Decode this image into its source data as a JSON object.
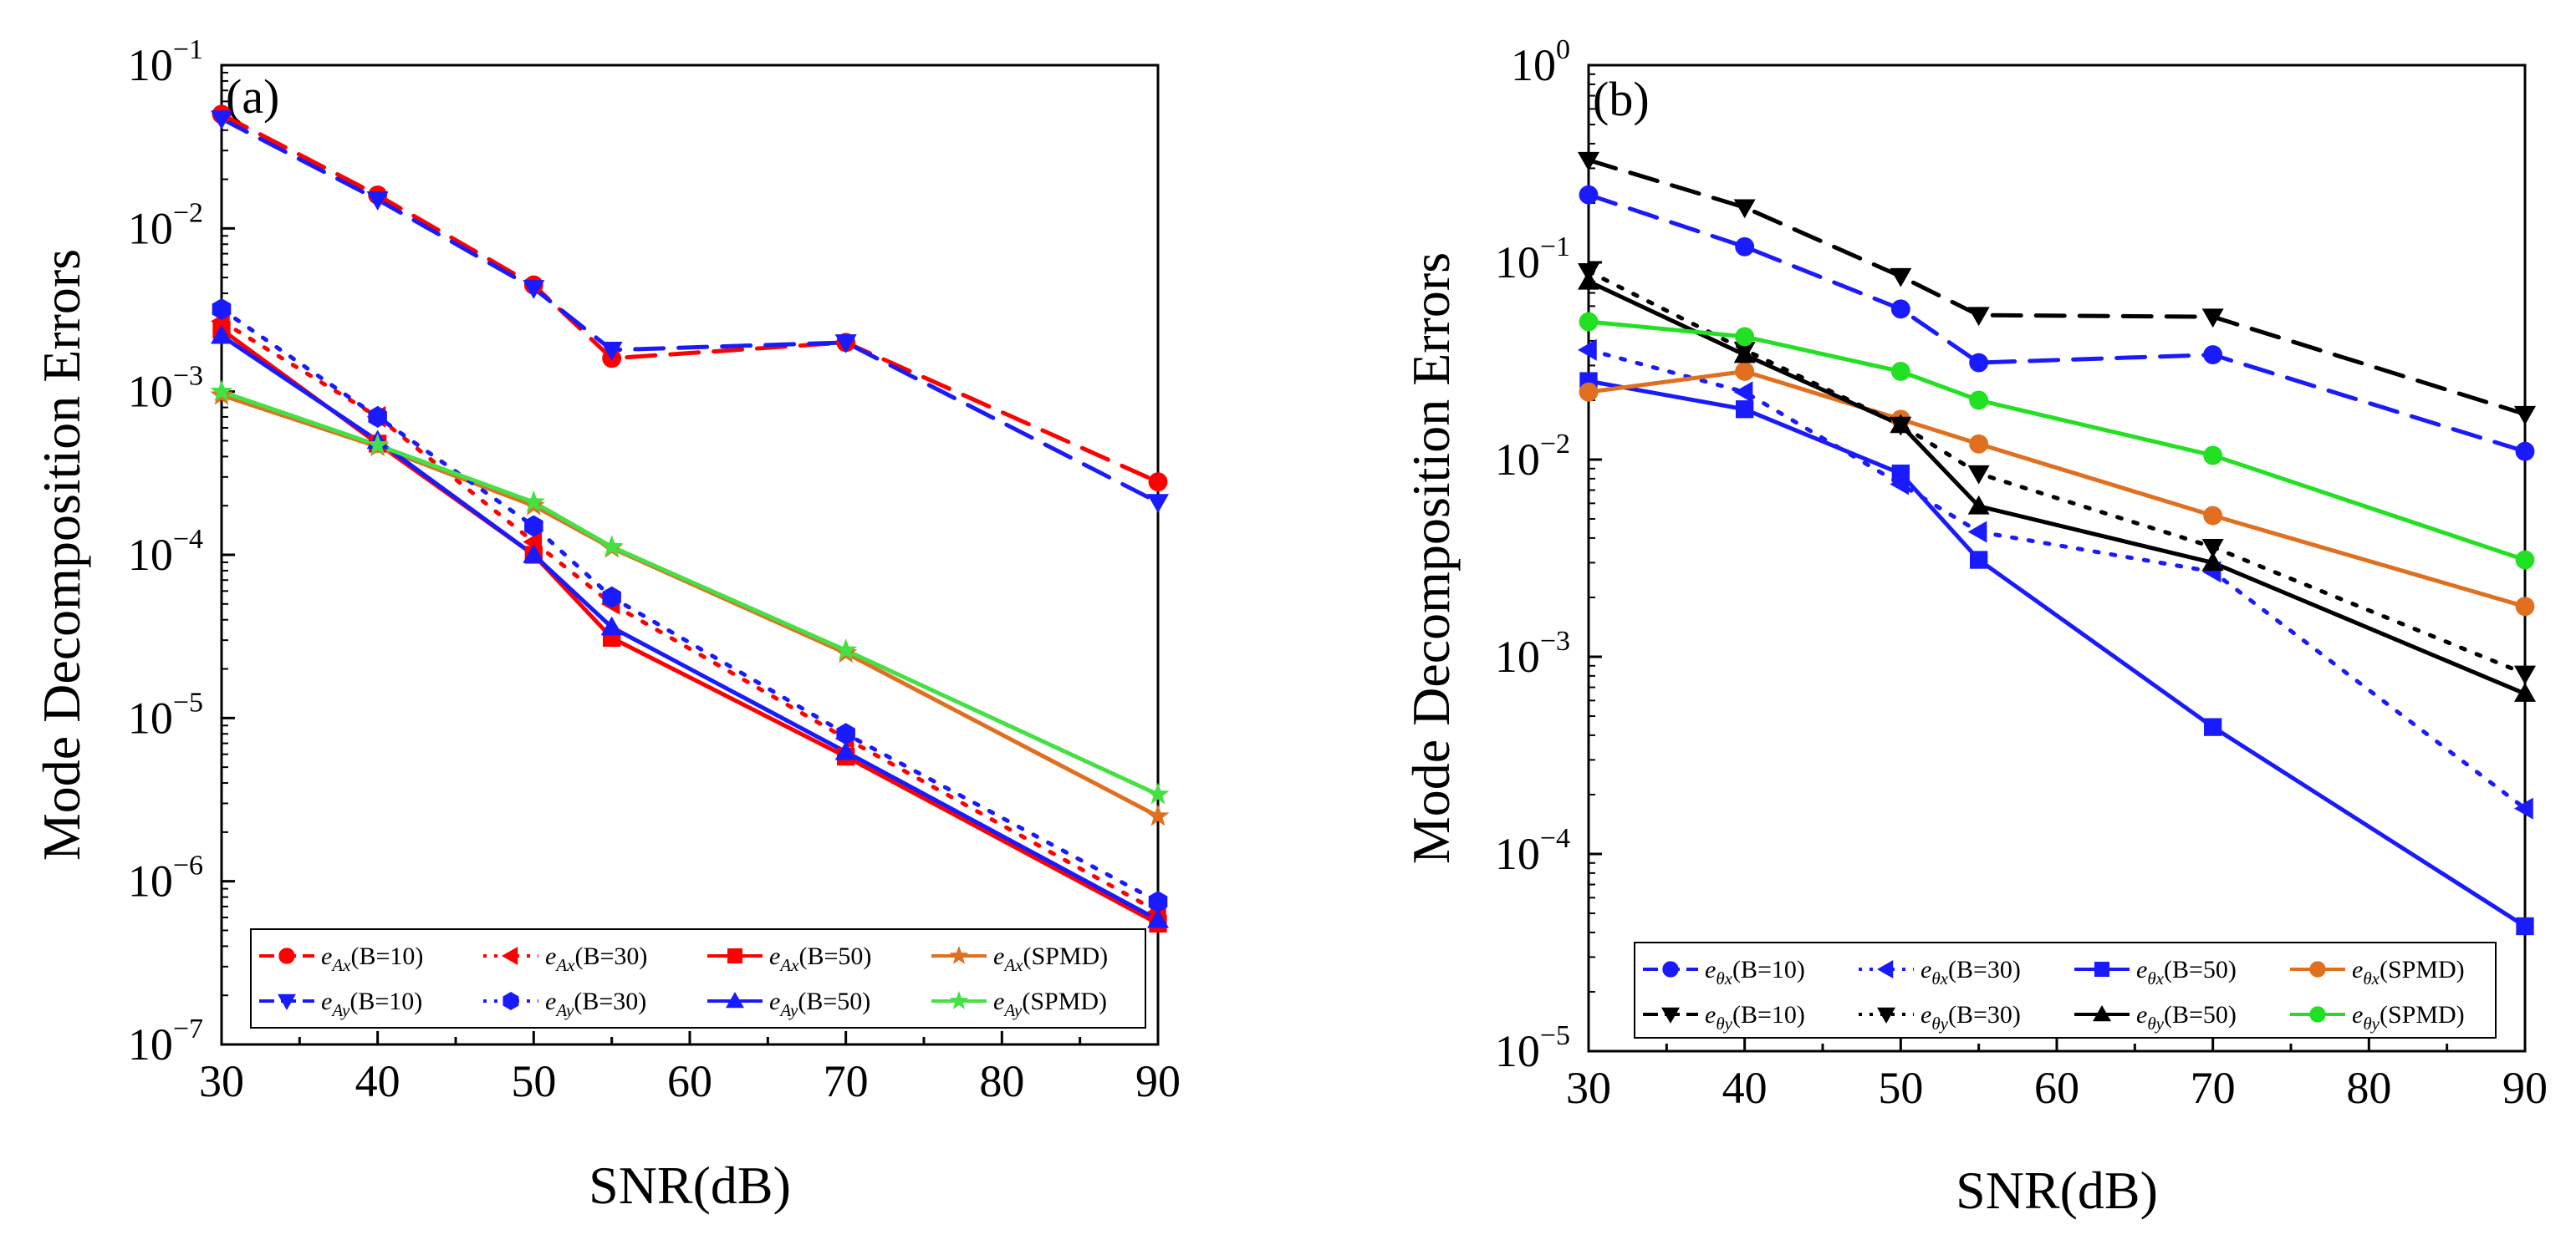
{
  "chart_data": [
    {
      "type": "line",
      "panel_label": "(a)",
      "xlabel": "SNR(dB)",
      "ylabel": "Mode Decomposition Errors",
      "xlim": [
        30,
        90
      ],
      "ylim": [
        1e-07,
        0.1
      ],
      "yscale": "log",
      "xticks": [
        30,
        40,
        50,
        60,
        70,
        80,
        90
      ],
      "yticks": [
        {
          "value": 1e-07,
          "base": "10",
          "exp": "−7"
        },
        {
          "value": 1e-06,
          "base": "10",
          "exp": "−6"
        },
        {
          "value": 1e-05,
          "base": "10",
          "exp": "−5"
        },
        {
          "value": 0.0001,
          "base": "10",
          "exp": "−4"
        },
        {
          "value": 0.001,
          "base": "10",
          "exp": "−3"
        },
        {
          "value": 0.01,
          "base": "10",
          "exp": "−2"
        },
        {
          "value": 0.1,
          "base": "10",
          "exp": "−1"
        }
      ],
      "grid": false,
      "legend_position": "bottom",
      "x": [
        30,
        40,
        50,
        55,
        70,
        90
      ],
      "series": [
        {
          "id": "eAx-b10",
          "label_main": "e",
          "label_sub": "Ax",
          "label_suffix": "(B=10)",
          "color": "#ff0000",
          "dash": "long",
          "marker": "circle",
          "values": [
            0.05,
            0.016,
            0.0045,
            0.0016,
            0.002,
            0.00028
          ]
        },
        {
          "id": "eAx-b30",
          "label_main": "e",
          "label_sub": "Ax",
          "label_suffix": "(B=30)",
          "color": "#ff0000",
          "dash": "dot",
          "marker": "triangle-left",
          "values": [
            0.0027,
            0.0007,
            0.00012,
            5e-05,
            7.5e-06,
            6.5e-07
          ]
        },
        {
          "id": "eAx-b50",
          "label_main": "e",
          "label_sub": "Ax",
          "label_suffix": "(B=50)",
          "color": "#ff0000",
          "dash": "solid",
          "marker": "square",
          "values": [
            0.0024,
            0.00048,
            0.0001,
            3.1e-05,
            5.8e-06,
            5.5e-07
          ]
        },
        {
          "id": "eAx-spmd",
          "label_main": "e",
          "label_sub": "Ax",
          "label_suffix": "(SPMD)",
          "color": "#e07020",
          "dash": "solid",
          "marker": "star",
          "values": [
            0.00095,
            0.00046,
            0.0002,
            0.00011,
            2.5e-05,
            2.5e-06
          ]
        },
        {
          "id": "eAy-b10",
          "label_main": "e",
          "label_sub": "Ay",
          "label_suffix": "(B=10)",
          "color": "#1a1aff",
          "dash": "long",
          "marker": "triangle-down",
          "values": [
            0.047,
            0.015,
            0.0043,
            0.0018,
            0.002,
            0.00021
          ]
        },
        {
          "id": "eAy-b30",
          "label_main": "e",
          "label_sub": "Ay",
          "label_suffix": "(B=30)",
          "color": "#1a1aff",
          "dash": "dot",
          "marker": "hexagon",
          "values": [
            0.0032,
            0.0007,
            0.00015,
            5.5e-05,
            8e-06,
            7.5e-07
          ]
        },
        {
          "id": "eAy-b50",
          "label_main": "e",
          "label_sub": "Ay",
          "label_suffix": "(B=50)",
          "color": "#1a1aff",
          "dash": "solid",
          "marker": "triangle-up",
          "values": [
            0.0022,
            0.0005,
            0.0001,
            3.6e-05,
            6.2e-06,
            5.8e-07
          ]
        },
        {
          "id": "eAy-spmd",
          "label_main": "e",
          "label_sub": "Ay",
          "label_suffix": "(SPMD)",
          "color": "#44e044",
          "dash": "solid",
          "marker": "star",
          "values": [
            0.001,
            0.00047,
            0.00021,
            0.000112,
            2.6e-05,
            3.4e-06
          ]
        }
      ]
    },
    {
      "type": "line",
      "panel_label": "(b)",
      "xlabel": "SNR(dB)",
      "ylabel": "Mode Decomposition Errors",
      "xlim": [
        30,
        90
      ],
      "ylim": [
        1e-05,
        1
      ],
      "yscale": "log",
      "xticks": [
        30,
        40,
        50,
        60,
        70,
        80,
        90
      ],
      "yticks": [
        {
          "value": 1e-05,
          "base": "10",
          "exp": "−5"
        },
        {
          "value": 0.0001,
          "base": "10",
          "exp": "−4"
        },
        {
          "value": 0.001,
          "base": "10",
          "exp": "−3"
        },
        {
          "value": 0.01,
          "base": "10",
          "exp": "−2"
        },
        {
          "value": 0.1,
          "base": "10",
          "exp": "−1"
        },
        {
          "value": 1,
          "base": "10",
          "exp": "0"
        }
      ],
      "grid": false,
      "legend_position": "bottom",
      "x": [
        30,
        40,
        50,
        55,
        70,
        90
      ],
      "series": [
        {
          "id": "ethx-b10",
          "label_main": "e",
          "label_sub": "θx",
          "label_suffix": "(B=10)",
          "color": "#1a1aff",
          "dash": "long",
          "marker": "circle",
          "values": [
            0.22,
            0.12,
            0.058,
            0.031,
            0.034,
            0.011
          ]
        },
        {
          "id": "ethx-b30",
          "label_main": "e",
          "label_sub": "θx",
          "label_suffix": "(B=30)",
          "color": "#1a1aff",
          "dash": "dot",
          "marker": "triangle-left",
          "values": [
            0.036,
            0.022,
            0.0075,
            0.0043,
            0.0027,
            0.00017
          ]
        },
        {
          "id": "ethx-b50",
          "label_main": "e",
          "label_sub": "θx",
          "label_suffix": "(B=50)",
          "color": "#1a1aff",
          "dash": "solid",
          "marker": "square",
          "values": [
            0.025,
            0.018,
            0.0085,
            0.0031,
            0.00044,
            4.3e-05
          ]
        },
        {
          "id": "ethx-spmd",
          "label_main": "e",
          "label_sub": "θx",
          "label_suffix": "(SPMD)",
          "color": "#e07020",
          "dash": "solid",
          "marker": "circle",
          "values": [
            0.022,
            0.028,
            0.016,
            0.012,
            0.0052,
            0.0018
          ]
        },
        {
          "id": "ethy-b10",
          "label_main": "e",
          "label_sub": "θy",
          "label_suffix": "(B=10)",
          "color": "#000000",
          "dash": "long",
          "marker": "triangle-down",
          "values": [
            0.33,
            0.19,
            0.085,
            0.054,
            0.053,
            0.017
          ]
        },
        {
          "id": "ethy-b30",
          "label_main": "e",
          "label_sub": "θy",
          "label_suffix": "(B=30)",
          "color": "#000000",
          "dash": "dot",
          "marker": "triangle-down",
          "values": [
            0.09,
            0.036,
            0.015,
            0.0085,
            0.0036,
            0.00082
          ]
        },
        {
          "id": "ethy-b50",
          "label_main": "e",
          "label_sub": "θy",
          "label_suffix": "(B=50)",
          "color": "#000000",
          "dash": "solid",
          "marker": "triangle-up",
          "values": [
            0.08,
            0.034,
            0.015,
            0.0058,
            0.003,
            0.00065
          ]
        },
        {
          "id": "ethy-spmd",
          "label_main": "e",
          "label_sub": "θy",
          "label_suffix": "(SPMD)",
          "color": "#22e022",
          "dash": "solid",
          "marker": "circle",
          "values": [
            0.05,
            0.042,
            0.028,
            0.02,
            0.0105,
            0.0031
          ]
        }
      ]
    }
  ]
}
